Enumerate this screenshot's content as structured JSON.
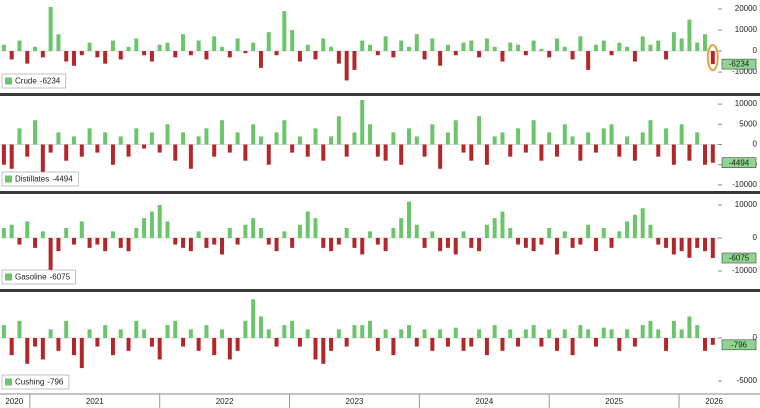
{
  "chart_data": {
    "type": "bar",
    "x": [
      2020.8,
      2020.86,
      2020.92,
      2020.98,
      2021.04,
      2021.1,
      2021.16,
      2021.22,
      2021.28,
      2021.34,
      2021.4,
      2021.46,
      2021.52,
      2021.58,
      2021.64,
      2021.7,
      2021.76,
      2021.82,
      2021.88,
      2021.94,
      2022,
      2022.06,
      2022.12,
      2022.18,
      2022.24,
      2022.3,
      2022.36,
      2022.42,
      2022.48,
      2022.54,
      2022.6,
      2022.66,
      2022.72,
      2022.78,
      2022.84,
      2022.9,
      2022.96,
      2023.02,
      2023.08,
      2023.14,
      2023.2,
      2023.26,
      2023.32,
      2023.38,
      2023.44,
      2023.5,
      2023.56,
      2023.62,
      2023.68,
      2023.74,
      2023.8,
      2023.86,
      2023.92,
      2023.98,
      2024.04,
      2024.1,
      2024.16,
      2024.22,
      2024.28,
      2024.34,
      2024.4,
      2024.46,
      2024.52,
      2024.58,
      2024.64,
      2024.7,
      2024.76,
      2024.82,
      2024.88,
      2024.94,
      2025,
      2025.06,
      2025.12,
      2025.18,
      2025.24,
      2025.3,
      2025.36,
      2025.42,
      2025.48,
      2025.54,
      2025.6,
      2025.66,
      2025.72,
      2025.78,
      2025.84,
      2025.9,
      2025.96,
      2026.02,
      2026.08,
      2026.14,
      2026.2,
      2026.26
    ],
    "xlim": [
      2020.77,
      2026.3
    ],
    "xticks": [
      {
        "value": 2020.88,
        "label": "2020"
      },
      {
        "value": 2021.5,
        "label": "2021"
      },
      {
        "value": 2022.5,
        "label": "2022"
      },
      {
        "value": 2023.5,
        "label": "2023"
      },
      {
        "value": 2024.5,
        "label": "2024"
      },
      {
        "value": 2025.5,
        "label": "2025"
      },
      {
        "value": 2026.27,
        "label": "2026"
      }
    ],
    "year_lines": [
      2021,
      2022,
      2023,
      2024,
      2025,
      2026
    ],
    "positive_color": "#6cc46c",
    "negative_color": "#b3272b",
    "series": [
      {
        "name": "Crude",
        "ylim": [
          -19500,
          24300
        ],
        "yticks": [
          20000,
          10000,
          0,
          -10000
        ],
        "values": [
          3000,
          -4000,
          5000,
          -6000,
          2000,
          -3000,
          21000,
          8000,
          -5000,
          -7000,
          -2000,
          4000,
          -3000,
          -6000,
          5000,
          -4000,
          2000,
          6000,
          -2000,
          -5000,
          3000,
          4000,
          -3000,
          8000,
          -2000,
          5000,
          -4000,
          7000,
          2000,
          -3000,
          6000,
          -1000,
          4000,
          -8000,
          9000,
          -2000,
          19000,
          10000,
          -5000,
          3000,
          -4000,
          6000,
          2000,
          -6000,
          -14000,
          -9000,
          5000,
          3000,
          -2000,
          7000,
          -3000,
          5000,
          2000,
          8000,
          -4000,
          6000,
          -7000,
          3000,
          -2000,
          4000,
          5000,
          -3000,
          6000,
          2000,
          -5000,
          4000,
          3000,
          -2000,
          5000,
          1000,
          -3000,
          6000,
          2000,
          -4000,
          7000,
          -9000,
          3000,
          5000,
          -2000,
          4000,
          2000,
          -5000,
          7000,
          3000,
          5000,
          -4000,
          9000,
          6000,
          15000,
          4000,
          8000,
          -6234
        ]
      },
      {
        "name": "Distillates",
        "ylim": [
          -11250,
          11750
        ],
        "yticks": [
          10000,
          5000,
          0,
          -5000,
          -10000
        ],
        "values": [
          -5000,
          -6000,
          4000,
          -3000,
          6000,
          -7000,
          -2000,
          3000,
          -4000,
          2000,
          -3000,
          4000,
          -2000,
          3000,
          -5000,
          2000,
          -3000,
          4000,
          -1000,
          3000,
          -2000,
          5000,
          -4000,
          3000,
          -6000,
          2000,
          4000,
          -3000,
          6000,
          -2000,
          3000,
          -4000,
          5000,
          2000,
          -5000,
          3000,
          6000,
          -2000,
          2000,
          -3000,
          4000,
          -4000,
          2000,
          7000,
          -3000,
          3000,
          11000,
          5000,
          -3000,
          -4000,
          3000,
          -5000,
          4000,
          2000,
          -3000,
          5000,
          -6000,
          3000,
          6000,
          -2000,
          -4000,
          7000,
          -5000,
          2000,
          3000,
          -3000,
          4000,
          -2000,
          6000,
          -4000,
          3000,
          -3000,
          5000,
          2000,
          -4000,
          3000,
          -2000,
          4000,
          5000,
          -3000,
          2000,
          -4000,
          3000,
          6000,
          -3000,
          4000,
          -5000,
          5000,
          -4000,
          3000,
          -5000,
          -4494
        ]
      },
      {
        "name": "Gasoline",
        "ylim": [
          -15150,
          13000
        ],
        "yticks": [
          10000,
          0,
          -10000
        ],
        "values": [
          3000,
          4000,
          -2000,
          5000,
          -3000,
          2000,
          -12000,
          -4000,
          3000,
          -2000,
          5000,
          -3000,
          -2000,
          -4000,
          2000,
          -3000,
          -4000,
          3000,
          6000,
          8000,
          10000,
          5000,
          -2000,
          -3000,
          -4000,
          2000,
          -3000,
          -2000,
          -5000,
          3000,
          -2000,
          4000,
          6000,
          3000,
          -2000,
          -4000,
          2000,
          -3000,
          4000,
          8000,
          6000,
          -3000,
          -4000,
          -2000,
          3000,
          -3000,
          -5000,
          2000,
          -2000,
          -4000,
          3000,
          6000,
          11000,
          4000,
          -3000,
          2000,
          -4000,
          -3000,
          -5000,
          2000,
          -3000,
          -4000,
          4000,
          6000,
          8000,
          3000,
          -2000,
          -3000,
          -4000,
          -2000,
          3000,
          -5000,
          2000,
          -3000,
          -2000,
          4000,
          -4000,
          3000,
          -3000,
          2000,
          5000,
          7000,
          9000,
          4000,
          -2000,
          -3000,
          -5000,
          -4000,
          -6000,
          -3000,
          -4000,
          -6075
        ]
      },
      {
        "name": "Cushing",
        "ylim": [
          -6400,
          5230
        ],
        "yticks": [
          0,
          -5000
        ],
        "values": [
          1500,
          -2000,
          2000,
          -3000,
          -1000,
          -2500,
          1000,
          -1500,
          2000,
          -2000,
          -3500,
          1000,
          -1000,
          1500,
          -2000,
          1000,
          -1500,
          2000,
          1000,
          -1000,
          -2500,
          1500,
          2000,
          -1000,
          1000,
          -1500,
          1500,
          -2000,
          1000,
          -2500,
          -1500,
          2000,
          4500,
          2500,
          1000,
          -1000,
          1500,
          2000,
          -1000,
          1000,
          -2500,
          -3000,
          -1500,
          1000,
          -1000,
          1500,
          1500,
          2000,
          -1500,
          1000,
          -2000,
          1000,
          1500,
          -1000,
          1000,
          -1500,
          1000,
          -1000,
          1200,
          -1500,
          -1000,
          1000,
          -2000,
          1500,
          -1500,
          1000,
          -1000,
          1000,
          1500,
          -1000,
          1000,
          -1500,
          1000,
          -2000,
          1500,
          1000,
          -1000,
          1200,
          1000,
          -1500,
          1000,
          -1000,
          1500,
          2000,
          1000,
          -1500,
          2000,
          1000,
          2500,
          1500,
          -1500,
          -796
        ]
      }
    ]
  }
}
